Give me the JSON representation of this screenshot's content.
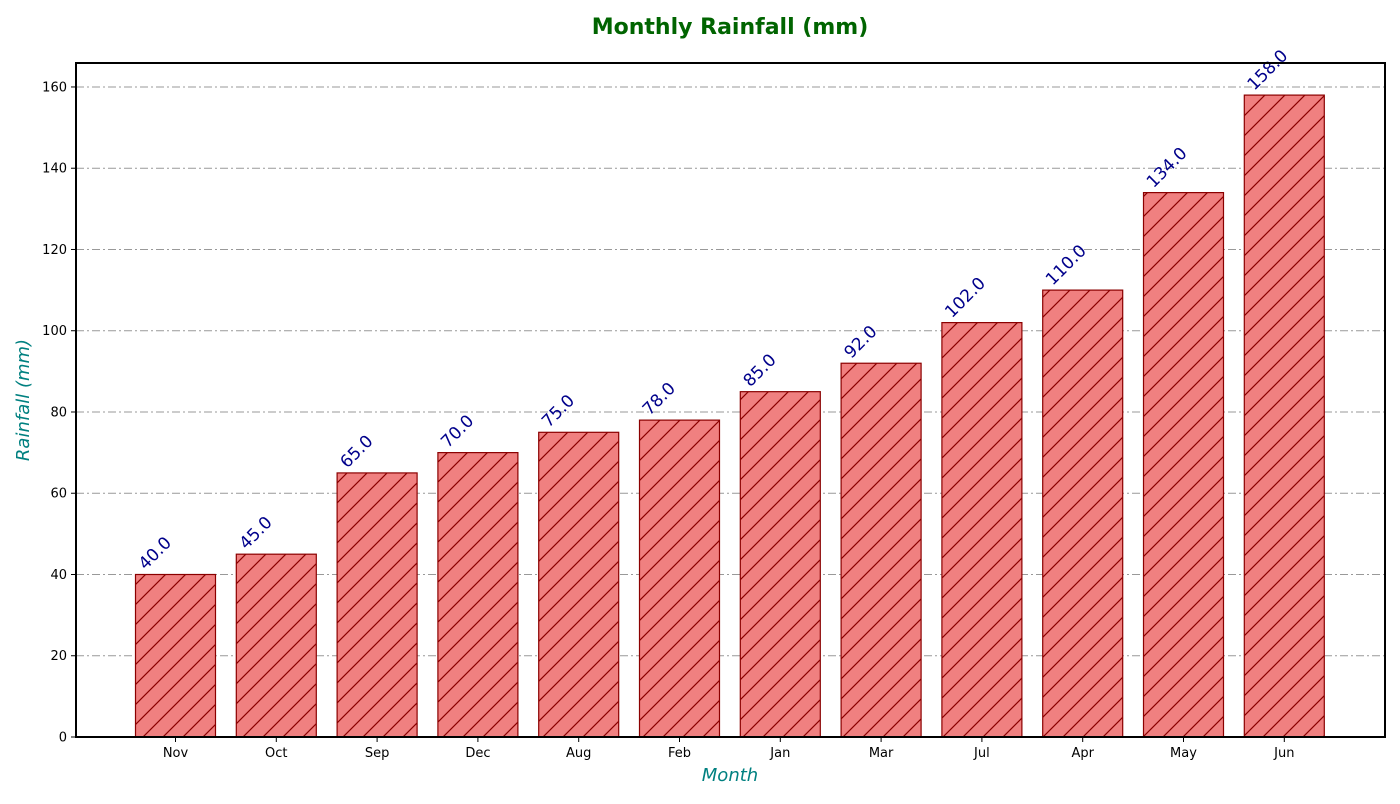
{
  "chart_data": {
    "type": "bar",
    "title": "Monthly Rainfall (mm)",
    "xlabel": "Month",
    "ylabel": "Rainfall (mm)",
    "categories": [
      "Nov",
      "Oct",
      "Sep",
      "Dec",
      "Aug",
      "Feb",
      "Jan",
      "Mar",
      "Jul",
      "Apr",
      "May",
      "Jun"
    ],
    "values": [
      40.0,
      45.0,
      65.0,
      70.0,
      75.0,
      78.0,
      85.0,
      92.0,
      102.0,
      110.0,
      134.0,
      158.0
    ],
    "value_labels": [
      "40.0",
      "45.0",
      "65.0",
      "70.0",
      "75.0",
      "78.0",
      "85.0",
      "92.0",
      "102.0",
      "110.0",
      "134.0",
      "158.0"
    ],
    "yticks": [
      "0",
      "20",
      "40",
      "60",
      "80",
      "100",
      "120",
      "140",
      "160"
    ],
    "ylim": [
      0,
      165.9
    ],
    "grid": true,
    "colors": {
      "title": "#006400",
      "axis_label": "#008080",
      "bar_fill": "#f08080",
      "bar_edge": "#8b0000",
      "value_label": "#00008b",
      "grid": "#999999"
    }
  }
}
